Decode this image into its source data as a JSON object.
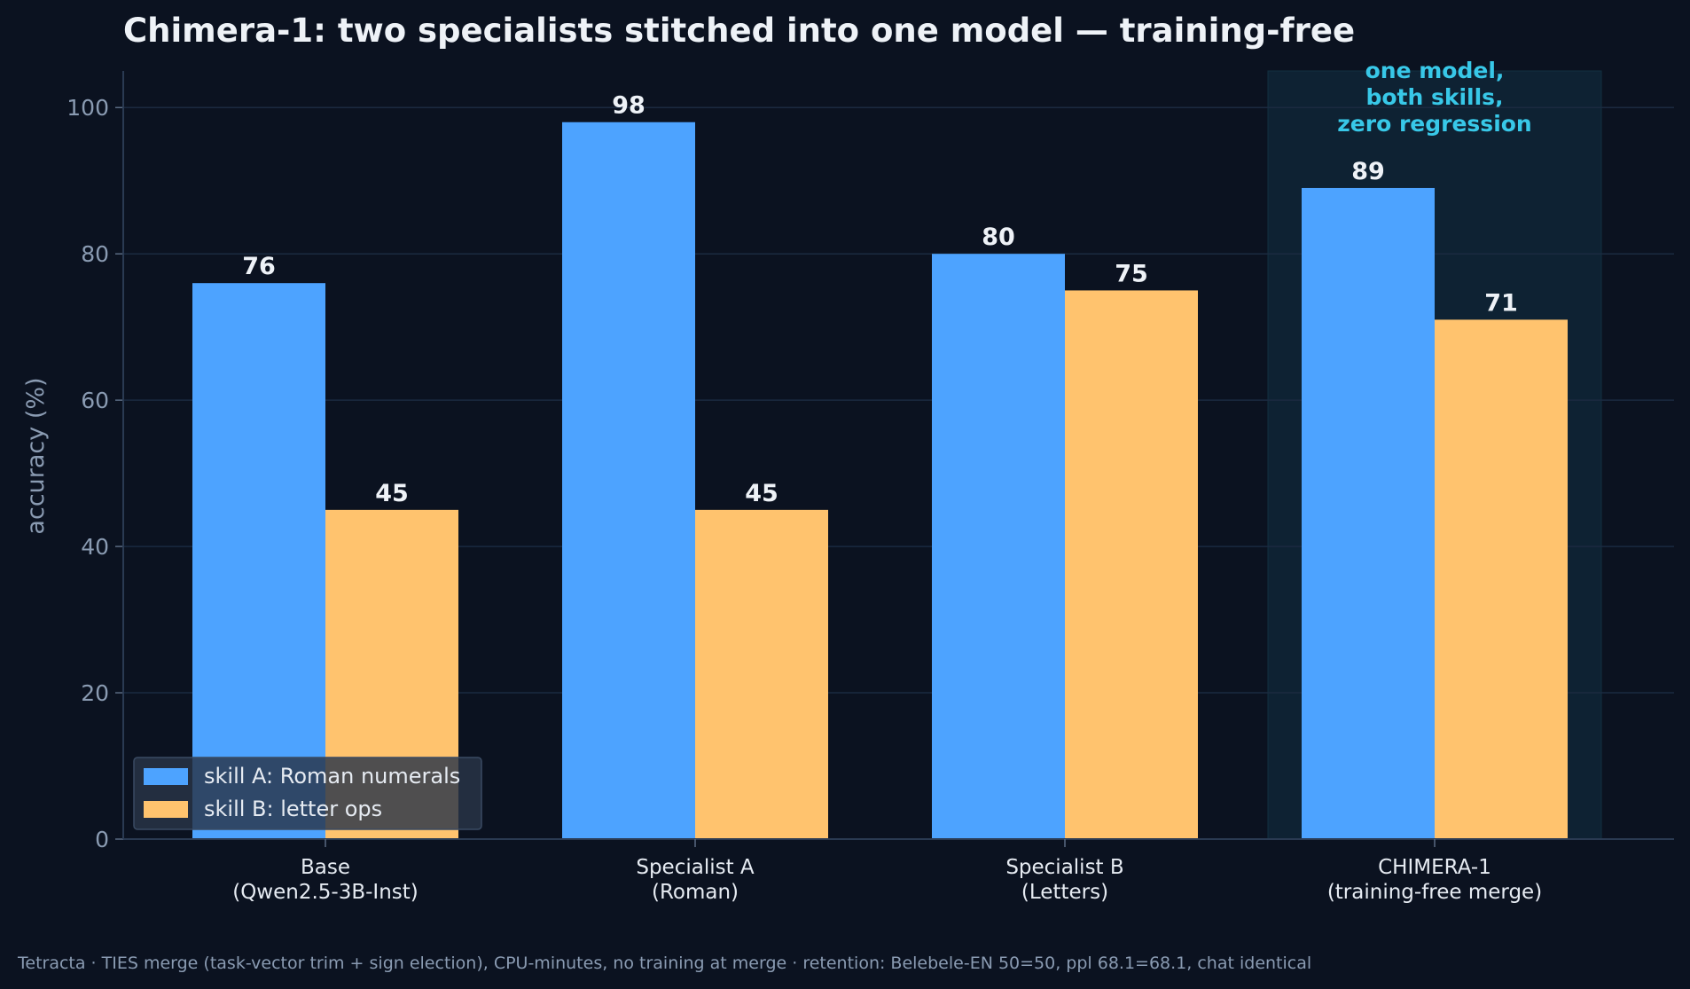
{
  "chart_data": {
    "type": "bar",
    "title": "Chimera-1: two specialists stitched into one model — training-free",
    "ylabel": "accuracy (%)",
    "xlabel": "",
    "ylim": [
      0,
      105
    ],
    "yticks": [
      0,
      20,
      40,
      60,
      80,
      100
    ],
    "grid": true,
    "legend_position": "lower-left",
    "categories": [
      [
        "Base",
        "(Qwen2.5-3B-Inst)"
      ],
      [
        "Specialist A",
        "(Roman)"
      ],
      [
        "Specialist B",
        "(Letters)"
      ],
      [
        "CHIMERA-1",
        "(training-free merge)"
      ]
    ],
    "series": [
      {
        "name": "skill A: Roman numerals",
        "color": "#4da3ff",
        "values": [
          76,
          98,
          80,
          89
        ]
      },
      {
        "name": "skill B: letter ops",
        "color": "#ffc36e",
        "values": [
          45,
          45,
          75,
          71
        ]
      }
    ],
    "highlight": {
      "category_index": 3,
      "color": "#0e2233",
      "annotation": [
        "one model,",
        "both skills,",
        "zero regression"
      ]
    },
    "footnote": "Tetracta · TIES merge (task-vector trim + sign election), CPU-minutes, no training at merge · retention: Belebele-EN 50=50, ppl 68.1=68.1, chat identical"
  }
}
